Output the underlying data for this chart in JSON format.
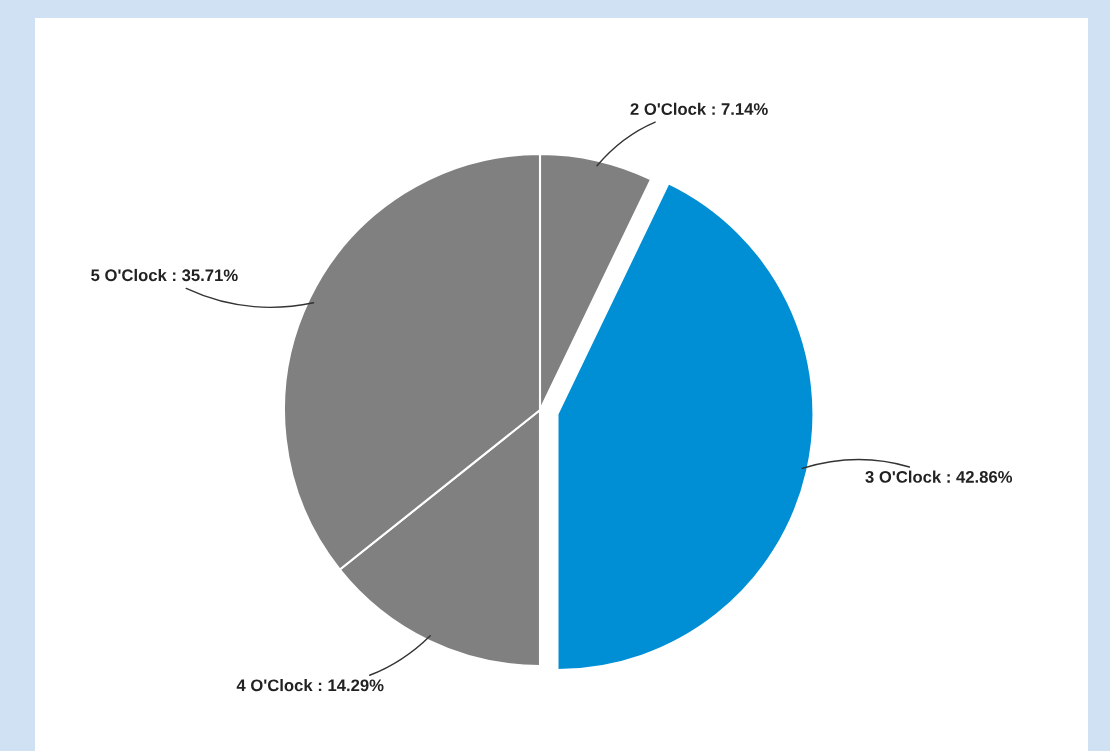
{
  "chart_data": {
    "type": "pie",
    "categories": [
      "2 O'Clock",
      "3 O'Clock",
      "4 O'Clock",
      "5 O'Clock"
    ],
    "values": [
      7.14,
      42.86,
      14.29,
      35.71
    ],
    "colors": [
      "#808080",
      "#008fd5",
      "#808080",
      "#808080"
    ],
    "value_labels": [
      "7.14%",
      "42.86%",
      "14.29%",
      "35.71%"
    ]
  }
}
